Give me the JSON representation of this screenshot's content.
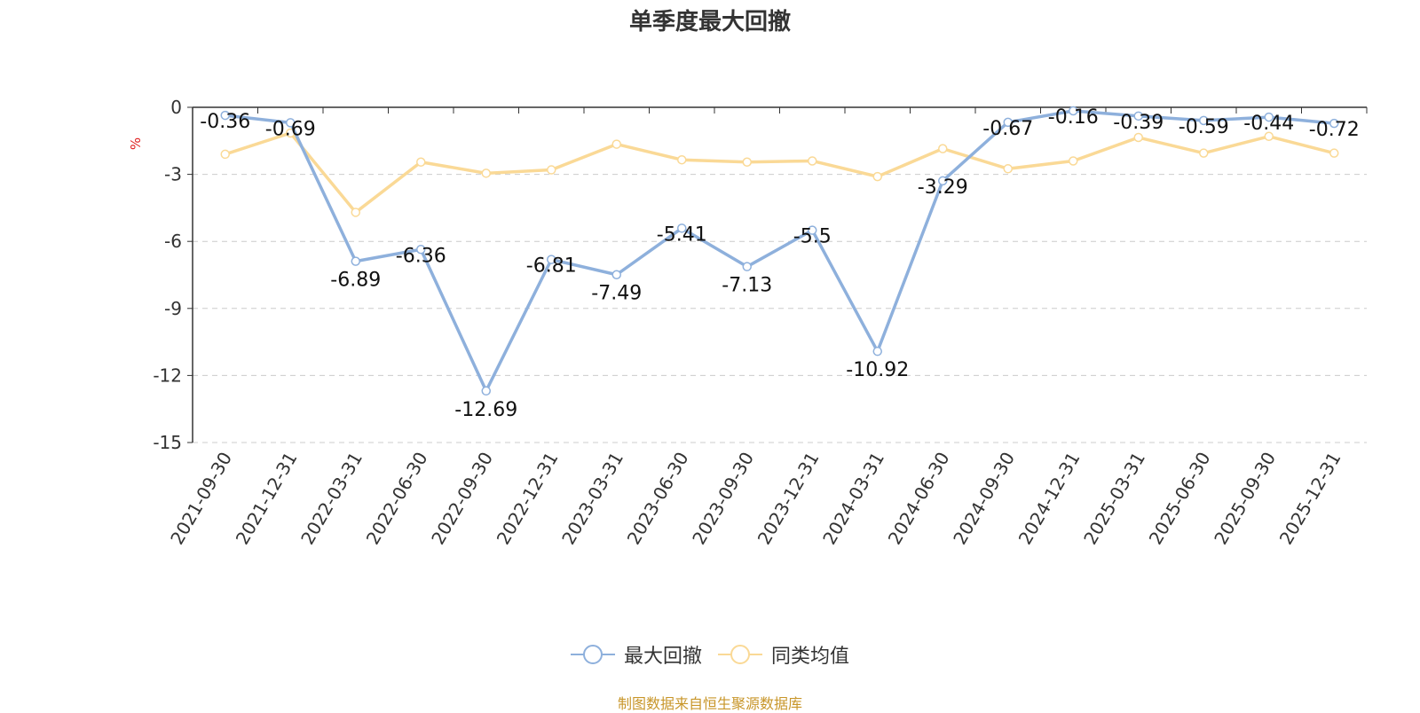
{
  "chart_data": {
    "type": "line",
    "title": "单季度最大回撤",
    "ylabel": "%",
    "ylim": [
      -15,
      0
    ],
    "yticks": [
      0,
      -3,
      -6,
      -9,
      -12,
      -15
    ],
    "grid": true,
    "legend_position": "bottom-center",
    "categories": [
      "2021-09-30",
      "2021-12-31",
      "2022-03-31",
      "2022-06-30",
      "2022-09-30",
      "2022-12-31",
      "2023-03-31",
      "2023-06-30",
      "2023-09-30",
      "2023-12-31",
      "2024-03-31",
      "2024-06-30",
      "2024-09-30",
      "2024-12-31",
      "2025-03-31",
      "2025-06-30",
      "2025-09-30",
      "2025-12-31"
    ],
    "series": [
      {
        "name": "最大回撤",
        "color": "#8eb0dc",
        "show_labels": true,
        "values": [
          -0.36,
          -0.69,
          -6.89,
          -6.36,
          -12.69,
          -6.81,
          -7.49,
          -5.41,
          -7.13,
          -5.5,
          -10.92,
          -3.29,
          -0.67,
          -0.16,
          -0.39,
          -0.59,
          -0.44,
          -0.72
        ]
      },
      {
        "name": "同类均值",
        "color": "#fad996",
        "show_labels": false,
        "values": [
          -2.1,
          -1.15,
          -4.7,
          -2.45,
          -2.95,
          -2.8,
          -1.65,
          -2.35,
          -2.45,
          -2.4,
          -3.1,
          -1.85,
          -2.75,
          -2.4,
          -1.35,
          -2.05,
          -1.3,
          -2.05
        ]
      }
    ]
  },
  "source": "制图数据来自恒生聚源数据库"
}
